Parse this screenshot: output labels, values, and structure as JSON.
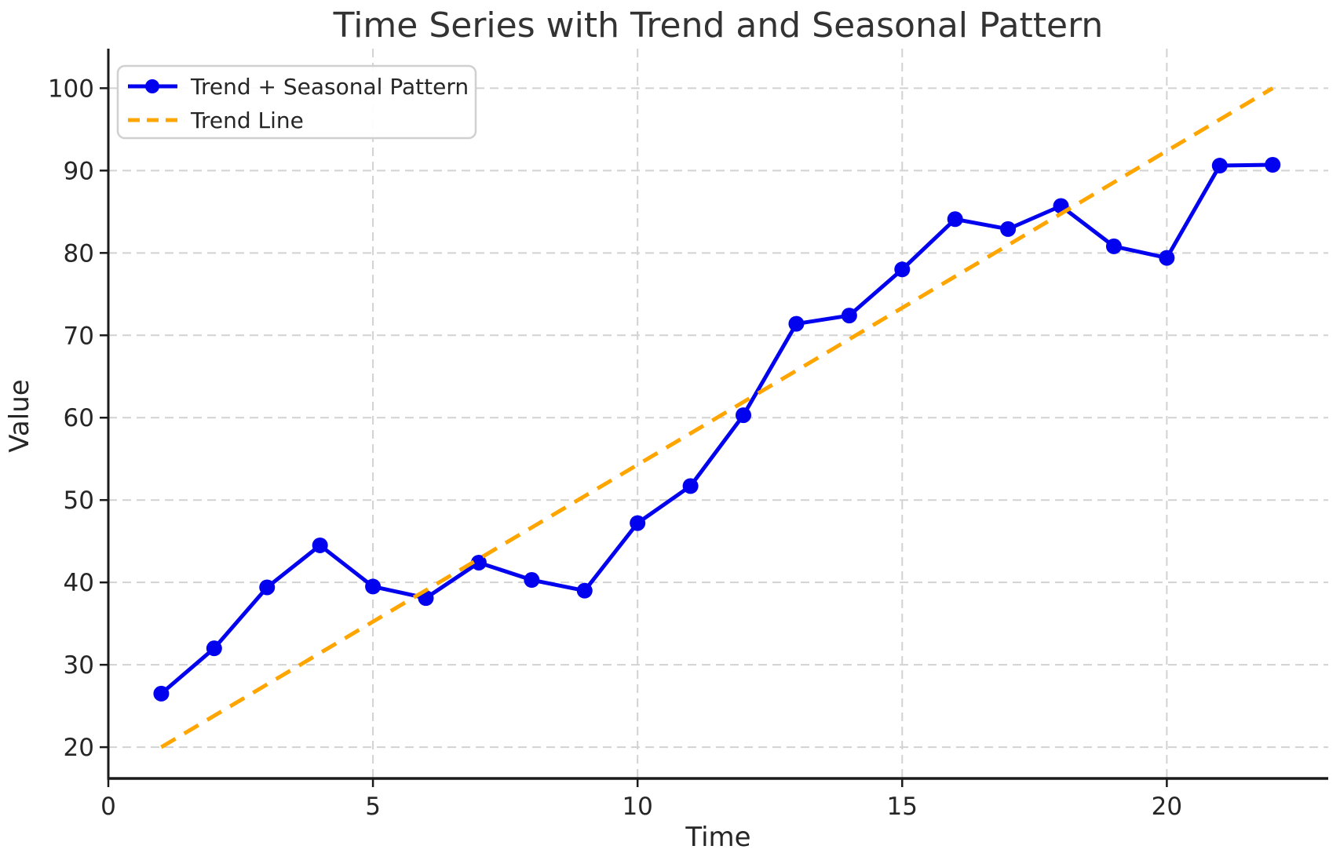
{
  "chart_data": {
    "type": "line",
    "title": "Time Series with Trend and Seasonal Pattern",
    "xlabel": "Time",
    "ylabel": "Value",
    "xlim": [
      0,
      23.05
    ],
    "ylim": [
      16.2,
      104.8
    ],
    "x_ticks": [
      0,
      5,
      10,
      15,
      20
    ],
    "y_ticks": [
      20,
      30,
      40,
      50,
      60,
      70,
      80,
      90,
      100
    ],
    "grid": true,
    "grid_style": "dashed",
    "legend_position": "upper-left",
    "series": [
      {
        "name": "Trend + Seasonal Pattern",
        "style": "solid-with-markers",
        "color": "#0202ee",
        "x": [
          1,
          2,
          3,
          4,
          5,
          6,
          7,
          8,
          9,
          10,
          11,
          12,
          13,
          14,
          15,
          16,
          17,
          18,
          19,
          20,
          21,
          22
        ],
        "values": [
          26.5,
          32.0,
          39.4,
          44.5,
          39.5,
          38.1,
          42.4,
          40.3,
          39.0,
          47.2,
          51.7,
          60.3,
          71.4,
          72.4,
          78.0,
          84.1,
          82.9,
          85.7,
          80.8,
          79.4,
          90.6,
          90.7
        ]
      },
      {
        "name": "Trend Line",
        "style": "dashed",
        "color": "#ffa500",
        "x": [
          1,
          22
        ],
        "values": [
          20,
          100
        ]
      }
    ],
    "colors": {
      "series_blue": "#0202ee",
      "trend_orange": "#ffa500",
      "grid": "#d2d2d2",
      "spine": "#1a1a1a",
      "tick_text": "#262626",
      "title_text": "#333333",
      "legend_border": "#d0d0d0",
      "legend_bg": "#ffffff"
    }
  }
}
